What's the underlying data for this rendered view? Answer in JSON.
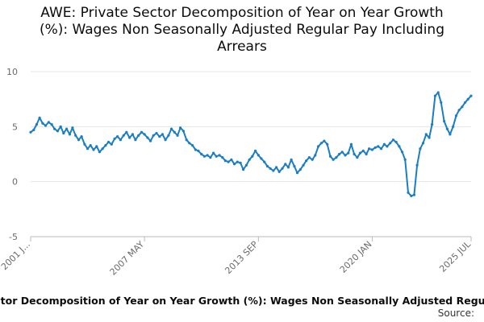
{
  "title_lines": [
    "AWE: Private Sector Decomposition of Year on Year Growth",
    "(%): Wages Non Seasonally Adjusted Regular Pay Including",
    "Arrears"
  ],
  "legend_text": "AWE: Private Sector Decomposition of Year on Year Growth (%): Wages Non Seasonally Adjusted Regular Pay Including Arrears",
  "source_label": "Source:",
  "colors": {
    "series": "#1b7ec4",
    "grid": "#e4e4e4",
    "axis": "#bbbbbb",
    "text": "#0b0c0c"
  },
  "chart_data": {
    "type": "line",
    "title": "AWE: Private Sector Decomposition of Year on Year Growth (%): Wages Non Seasonally Adjusted Regular Pay Including Arrears",
    "xlabel": "",
    "ylabel": "",
    "ylim": [
      -5,
      10
    ],
    "yticks": [
      -5,
      0,
      5,
      10
    ],
    "xlim": [
      2001.0,
      2025.5
    ],
    "xticks": [
      {
        "value": 2001.0,
        "label": "2001 J..."
      },
      {
        "value": 2007.33,
        "label": "2007 MAY"
      },
      {
        "value": 2013.67,
        "label": "2013 SEP"
      },
      {
        "value": 2020.0,
        "label": "2020 JAN"
      },
      {
        "value": 2025.5,
        "label": "2025 JUL"
      }
    ],
    "grid": true,
    "legend": "bottom",
    "series": [
      {
        "name": "AWE: Private Sector Decomposition of Year on Year Growth (%): Wages Non Seasonally Adjusted Regular Pay Including Arrears",
        "points": [
          [
            2001.0,
            4.5
          ],
          [
            2001.17,
            4.7
          ],
          [
            2001.33,
            5.2
          ],
          [
            2001.5,
            5.8
          ],
          [
            2001.67,
            5.3
          ],
          [
            2001.83,
            5.1
          ],
          [
            2002.0,
            5.4
          ],
          [
            2002.17,
            5.2
          ],
          [
            2002.33,
            4.8
          ],
          [
            2002.5,
            4.6
          ],
          [
            2002.67,
            5.0
          ],
          [
            2002.83,
            4.4
          ],
          [
            2003.0,
            4.8
          ],
          [
            2003.17,
            4.3
          ],
          [
            2003.33,
            4.9
          ],
          [
            2003.5,
            4.2
          ],
          [
            2003.67,
            3.8
          ],
          [
            2003.83,
            4.1
          ],
          [
            2004.0,
            3.4
          ],
          [
            2004.17,
            3.0
          ],
          [
            2004.33,
            3.3
          ],
          [
            2004.5,
            2.9
          ],
          [
            2004.67,
            3.2
          ],
          [
            2004.83,
            2.7
          ],
          [
            2005.0,
            3.0
          ],
          [
            2005.17,
            3.3
          ],
          [
            2005.33,
            3.6
          ],
          [
            2005.5,
            3.4
          ],
          [
            2005.67,
            3.9
          ],
          [
            2005.83,
            4.1
          ],
          [
            2006.0,
            3.8
          ],
          [
            2006.17,
            4.2
          ],
          [
            2006.33,
            4.5
          ],
          [
            2006.5,
            4.0
          ],
          [
            2006.67,
            4.3
          ],
          [
            2006.83,
            3.8
          ],
          [
            2007.0,
            4.2
          ],
          [
            2007.17,
            4.5
          ],
          [
            2007.33,
            4.3
          ],
          [
            2007.5,
            4.0
          ],
          [
            2007.67,
            3.7
          ],
          [
            2007.83,
            4.2
          ],
          [
            2008.0,
            4.4
          ],
          [
            2008.17,
            4.1
          ],
          [
            2008.33,
            4.3
          ],
          [
            2008.5,
            3.8
          ],
          [
            2008.67,
            4.2
          ],
          [
            2008.83,
            4.8
          ],
          [
            2009.0,
            4.5
          ],
          [
            2009.17,
            4.2
          ],
          [
            2009.33,
            4.9
          ],
          [
            2009.5,
            4.6
          ],
          [
            2009.67,
            3.8
          ],
          [
            2009.83,
            3.5
          ],
          [
            2010.0,
            3.3
          ],
          [
            2010.17,
            2.9
          ],
          [
            2010.33,
            2.8
          ],
          [
            2010.5,
            2.5
          ],
          [
            2010.67,
            2.3
          ],
          [
            2010.83,
            2.4
          ],
          [
            2011.0,
            2.2
          ],
          [
            2011.17,
            2.6
          ],
          [
            2011.33,
            2.3
          ],
          [
            2011.5,
            2.4
          ],
          [
            2011.67,
            2.2
          ],
          [
            2011.83,
            1.9
          ],
          [
            2012.0,
            1.8
          ],
          [
            2012.17,
            2.0
          ],
          [
            2012.33,
            1.6
          ],
          [
            2012.5,
            1.8
          ],
          [
            2012.67,
            1.7
          ],
          [
            2012.83,
            1.1
          ],
          [
            2013.0,
            1.5
          ],
          [
            2013.17,
            2.0
          ],
          [
            2013.33,
            2.3
          ],
          [
            2013.5,
            2.8
          ],
          [
            2013.67,
            2.4
          ],
          [
            2013.83,
            2.1
          ],
          [
            2014.0,
            1.8
          ],
          [
            2014.17,
            1.4
          ],
          [
            2014.33,
            1.2
          ],
          [
            2014.5,
            1.0
          ],
          [
            2014.67,
            1.3
          ],
          [
            2014.83,
            0.9
          ],
          [
            2015.0,
            1.2
          ],
          [
            2015.17,
            1.6
          ],
          [
            2015.33,
            1.3
          ],
          [
            2015.5,
            2.0
          ],
          [
            2015.67,
            1.4
          ],
          [
            2015.83,
            0.8
          ],
          [
            2016.0,
            1.1
          ],
          [
            2016.17,
            1.5
          ],
          [
            2016.33,
            1.9
          ],
          [
            2016.5,
            2.2
          ],
          [
            2016.67,
            2.0
          ],
          [
            2016.83,
            2.4
          ],
          [
            2017.0,
            3.2
          ],
          [
            2017.17,
            3.5
          ],
          [
            2017.33,
            3.7
          ],
          [
            2017.5,
            3.4
          ],
          [
            2017.67,
            2.3
          ],
          [
            2017.83,
            2.0
          ],
          [
            2018.0,
            2.2
          ],
          [
            2018.17,
            2.5
          ],
          [
            2018.33,
            2.7
          ],
          [
            2018.5,
            2.4
          ],
          [
            2018.67,
            2.6
          ],
          [
            2018.83,
            3.4
          ],
          [
            2019.0,
            2.5
          ],
          [
            2019.17,
            2.2
          ],
          [
            2019.33,
            2.6
          ],
          [
            2019.5,
            2.8
          ],
          [
            2019.67,
            2.5
          ],
          [
            2019.83,
            3.0
          ],
          [
            2020.0,
            2.9
          ],
          [
            2020.17,
            3.1
          ],
          [
            2020.33,
            3.2
          ],
          [
            2020.5,
            3.0
          ],
          [
            2020.67,
            3.4
          ],
          [
            2020.83,
            3.2
          ],
          [
            2021.0,
            3.5
          ],
          [
            2021.17,
            3.8
          ],
          [
            2021.33,
            3.6
          ],
          [
            2021.5,
            3.2
          ],
          [
            2021.67,
            2.7
          ],
          [
            2021.83,
            2.0
          ],
          [
            2022.0,
            -1.0
          ],
          [
            2022.17,
            -1.3
          ],
          [
            2022.33,
            -1.2
          ],
          [
            2022.5,
            1.5
          ],
          [
            2022.67,
            3.0
          ],
          [
            2022.83,
            3.5
          ],
          [
            2023.0,
            4.3
          ],
          [
            2023.17,
            4.0
          ],
          [
            2023.33,
            5.2
          ],
          [
            2023.5,
            7.8
          ],
          [
            2023.67,
            8.1
          ],
          [
            2023.83,
            7.2
          ],
          [
            2024.0,
            5.5
          ],
          [
            2024.17,
            4.8
          ],
          [
            2024.33,
            4.3
          ],
          [
            2024.5,
            5.0
          ],
          [
            2024.67,
            6.0
          ],
          [
            2024.83,
            6.5
          ],
          [
            2025.0,
            6.8
          ],
          [
            2025.17,
            7.2
          ],
          [
            2025.33,
            7.5
          ],
          [
            2025.5,
            7.8
          ]
        ]
      }
    ]
  }
}
